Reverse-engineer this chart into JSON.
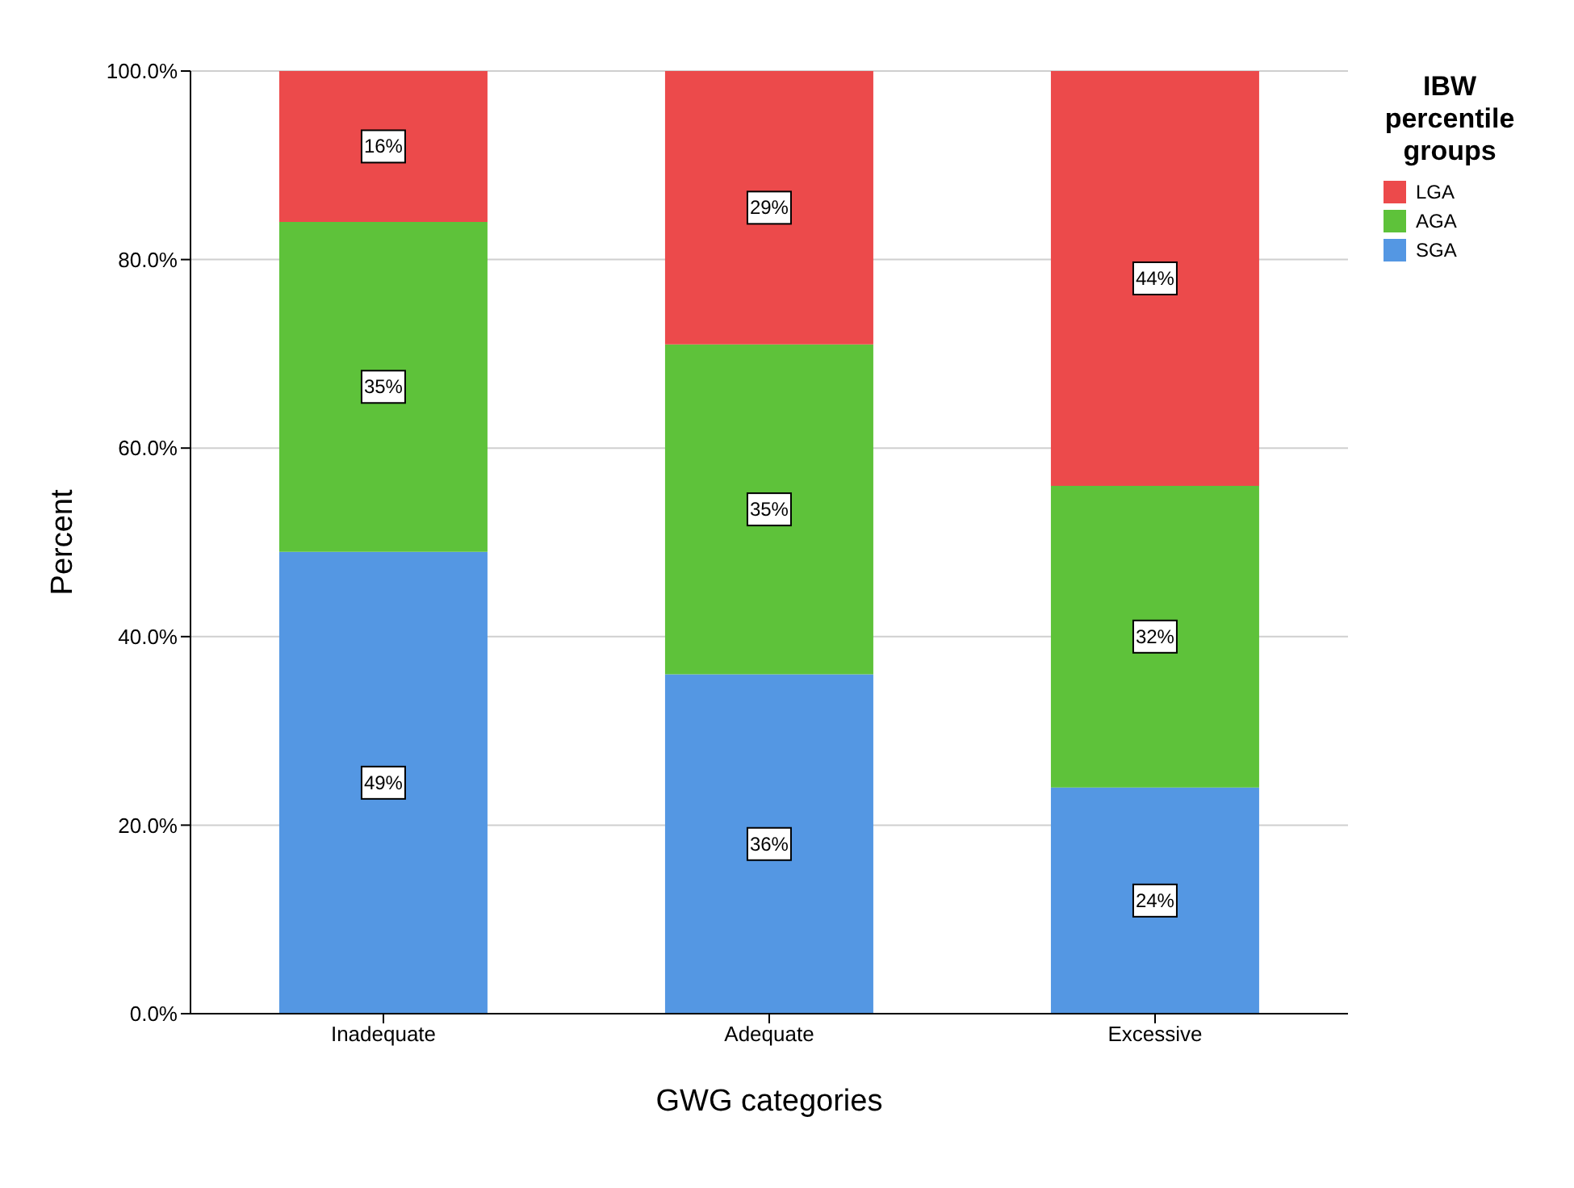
{
  "chart_data": {
    "type": "bar",
    "stacked": true,
    "xlabel": "GWG categories",
    "ylabel": "Percent",
    "legend_title": "IBW percentile groups",
    "legend": "top right",
    "grid": "y",
    "categories": [
      "Inadequate",
      "Adequate",
      "Excessive"
    ],
    "ylim": [
      0,
      100
    ],
    "yticks": [
      {
        "value": 0,
        "label": "0.0%"
      },
      {
        "value": 20,
        "label": "20.0%"
      },
      {
        "value": 40,
        "label": "40.0%"
      },
      {
        "value": 60,
        "label": "60.0%"
      },
      {
        "value": 80,
        "label": "80.0%"
      },
      {
        "value": 100,
        "label": "100.0%"
      }
    ],
    "series": [
      {
        "name": "SGA",
        "color": "#5497e3",
        "values": [
          49,
          36,
          24
        ],
        "value_labels": [
          "49%",
          "36%",
          "24%"
        ]
      },
      {
        "name": "AGA",
        "color": "#5ec23a",
        "values": [
          35,
          35,
          32
        ],
        "value_labels": [
          "35%",
          "35%",
          "32%"
        ]
      },
      {
        "name": "LGA",
        "color": "#ec4a4b",
        "values": [
          16,
          29,
          44
        ],
        "value_labels": [
          "16%",
          "29%",
          "44%"
        ]
      }
    ]
  }
}
